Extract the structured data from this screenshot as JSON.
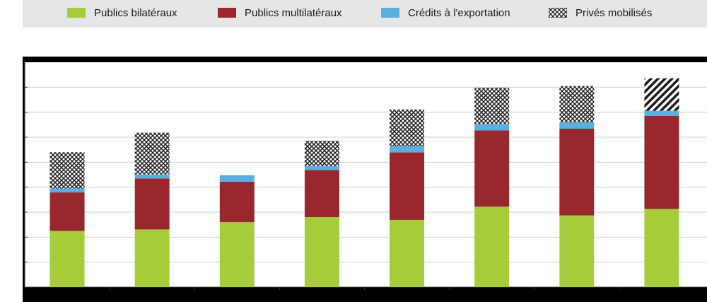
{
  "legend": {
    "items": [
      {
        "label": "Publics bilatéraux",
        "color": "#a6cc3a"
      },
      {
        "label": "Publics multilatéraux",
        "color": "#98282e"
      },
      {
        "label": "Crédits à l'exportation",
        "color": "#5aaee0"
      },
      {
        "label": "Privés mobilisés",
        "pattern": "crosshatch"
      }
    ]
  },
  "chart_data": {
    "type": "bar",
    "stacked": true,
    "categories": [
      "",
      "",
      "",
      "",
      "",
      "",
      "",
      ""
    ],
    "ylim": [
      0,
      90
    ],
    "grid": true,
    "legend_position": "top",
    "series": [
      {
        "name": "Publics bilatéraux",
        "color": "#a6cc3a",
        "values": [
          22.5,
          23.1,
          26.0,
          28.0,
          26.9,
          32.2,
          28.7,
          31.3
        ]
      },
      {
        "name": "Publics multilatéraux",
        "color": "#98282e",
        "values": [
          15.4,
          20.4,
          16.2,
          18.9,
          27.0,
          30.5,
          34.7,
          37.2
        ]
      },
      {
        "name": "Crédits à l'exportation",
        "color": "#5aaee0",
        "values": [
          1.6,
          1.6,
          2.6,
          1.6,
          2.6,
          2.6,
          2.6,
          2.1
        ]
      },
      {
        "name": "Privés mobilisés",
        "pattern": "crosshatch",
        "values": [
          14.5,
          16.7,
          0,
          10.1,
          14.6,
          14.5,
          14.5,
          13.0
        ]
      }
    ]
  }
}
